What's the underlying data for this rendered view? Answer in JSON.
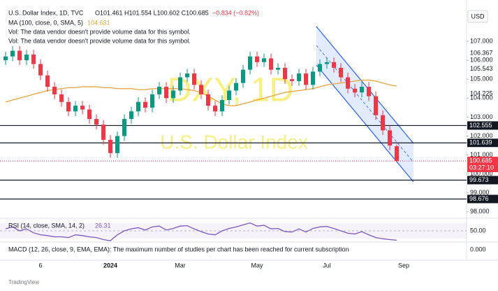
{
  "chart_data": {
    "type": "candlestick",
    "header": {
      "symbol": "U.S. Dollar Index, 1D, TVC",
      "ohlc": "O101.461 H101.554 L100.602 C100.685",
      "change": "−0.834 (−0.82%)",
      "ma": "MA (100, close, 0, SMA, 5)",
      "vol": "Vol: The data vendor doesn't provide volume data for this symbol.",
      "vol2": "Vol: The data vendor doesn't provide volume data for this symbol."
    },
    "currency": "USD",
    "watermark": "DXY, 1D",
    "watermark_sub": "U.S. Dollar Index",
    "countdown": "03:27:10",
    "logo": "TradingView",
    "up_color": "#089981",
    "down_color": "#f23645",
    "categories": [
      null,
      null,
      null,
      null,
      null,
      "6",
      null,
      null,
      null,
      null,
      null,
      null,
      null,
      null,
      null,
      "2024",
      null,
      null,
      null,
      null,
      null,
      null,
      null,
      null,
      null,
      "Mar",
      null,
      null,
      null,
      null,
      null,
      null,
      null,
      null,
      null,
      null,
      "May",
      null,
      null,
      null,
      null,
      null,
      null,
      null,
      null,
      null,
      "Jul",
      null,
      null,
      null,
      null,
      null,
      null,
      null,
      null,
      null,
      null,
      "Sep"
    ],
    "open": [
      106.0,
      106.2,
      106.5,
      106.0,
      106.3,
      105.8,
      105.2,
      104.6,
      104.2,
      103.8,
      103.3,
      103.6,
      103.4,
      102.9,
      102.6,
      101.8,
      101.1,
      102.0,
      102.9,
      103.3,
      103.8,
      103.5,
      104.2,
      104.6,
      104.0,
      104.4,
      105.1,
      105.3,
      104.7,
      104.2,
      103.6,
      103.3,
      103.9,
      104.4,
      104.8,
      105.5,
      106.2,
      105.9,
      106.1,
      105.5,
      105.6,
      105.0,
      104.9,
      105.3,
      104.7,
      105.4,
      105.8,
      105.9,
      105.6,
      105.1,
      104.5,
      104.3,
      104.6,
      104.1,
      103.1,
      102.3,
      101.461,
      null
    ],
    "high": [
      106.45,
      106.75,
      106.75,
      106.55,
      106.55,
      106.05,
      105.45,
      104.85,
      104.45,
      104.05,
      103.85,
      103.85,
      103.65,
      103.15,
      102.85,
      102.05,
      102.25,
      103.15,
      103.55,
      104.05,
      104.05,
      104.45,
      104.85,
      104.85,
      104.65,
      105.35,
      105.55,
      105.55,
      104.95,
      104.45,
      103.85,
      104.15,
      104.65,
      105.05,
      105.75,
      106.45,
      106.45,
      106.35,
      106.35,
      105.85,
      105.85,
      105.25,
      105.55,
      105.55,
      105.65,
      106.05,
      106.15,
      106.15,
      105.85,
      105.35,
      104.75,
      104.85,
      104.85,
      104.35,
      103.35,
      102.55,
      101.554,
      null
    ],
    "low": [
      105.75,
      105.95,
      105.75,
      105.75,
      105.55,
      104.95,
      104.35,
      103.95,
      103.55,
      103.05,
      103.05,
      103.15,
      102.65,
      102.35,
      101.55,
      100.85,
      100.85,
      101.75,
      102.65,
      103.05,
      103.25,
      103.25,
      103.95,
      103.75,
      103.75,
      104.15,
      104.85,
      104.45,
      103.95,
      103.35,
      103.05,
      103.05,
      103.65,
      104.15,
      104.55,
      105.25,
      105.65,
      105.65,
      105.25,
      105.25,
      104.75,
      104.65,
      104.65,
      104.45,
      104.45,
      105.15,
      105.55,
      105.35,
      104.85,
      104.25,
      104.05,
      104.05,
      103.85,
      102.85,
      102.05,
      101.25,
      100.602,
      null
    ],
    "close": [
      106.2,
      106.5,
      106.0,
      106.3,
      105.8,
      105.2,
      104.6,
      104.2,
      103.8,
      103.3,
      103.6,
      103.4,
      102.9,
      102.6,
      101.8,
      101.1,
      102.0,
      102.9,
      103.3,
      103.8,
      103.5,
      104.2,
      104.6,
      104.0,
      104.4,
      105.1,
      105.3,
      104.7,
      104.2,
      103.6,
      103.3,
      103.9,
      104.4,
      104.8,
      105.5,
      106.2,
      105.9,
      106.1,
      105.5,
      105.6,
      105.0,
      104.9,
      105.3,
      104.7,
      105.4,
      105.8,
      105.9,
      105.6,
      105.1,
      104.5,
      104.3,
      104.6,
      104.1,
      103.1,
      102.3,
      101.5,
      100.685,
      null
    ],
    "ma": {
      "color": "#e8a33d",
      "values": [
        103.8,
        103.9,
        104.0,
        104.1,
        104.2,
        104.3,
        104.4,
        104.45,
        104.5,
        104.55,
        104.55,
        104.6,
        104.6,
        104.6,
        104.55,
        104.55,
        104.5,
        104.5,
        104.5,
        104.45,
        104.45,
        104.5,
        104.5,
        104.5,
        104.5,
        104.5,
        104.45,
        104.4,
        104.3,
        104.1,
        103.9,
        103.7,
        103.6,
        103.6,
        103.7,
        103.8,
        103.9,
        104.0,
        104.1,
        104.2,
        104.3,
        104.35,
        104.4,
        104.45,
        104.5,
        104.6,
        104.7,
        104.75,
        104.8,
        104.85,
        104.9,
        104.95,
        104.95,
        104.9,
        104.8,
        104.7,
        104.631,
        null
      ]
    },
    "ylim": [
      97.66,
      109.18
    ],
    "yticks": [
      {
        "value": 107,
        "label": "107.000"
      },
      {
        "value": 106,
        "label": "106.000"
      },
      {
        "value": 105,
        "label": "105.000"
      },
      {
        "value": 104,
        "label": "104.000"
      },
      {
        "value": 103,
        "label": "103.000"
      },
      {
        "value": 102,
        "label": "102.000"
      },
      {
        "value": 101,
        "label": "101.000"
      },
      {
        "value": 100,
        "label": "100.000"
      },
      {
        "value": 99,
        "label": "99.000"
      },
      {
        "value": 98,
        "label": "98.000"
      }
    ],
    "price_labels": [
      106.367,
      105.543,
      104.225
    ],
    "levels": [
      102.555,
      101.639,
      99.673,
      98.676
    ],
    "rsi": {
      "label": "RSI (14, close, SMA, 14, 2)",
      "color": "#7e57c2",
      "ylim": [
        20,
        80
      ],
      "yticks": [
        {
          "value": 50,
          "label": "50.00"
        }
      ],
      "values": [
        55,
        60,
        50,
        55,
        45,
        40,
        38,
        35,
        35,
        33,
        40,
        38,
        35,
        33,
        28,
        25,
        40,
        50,
        55,
        58,
        52,
        60,
        62,
        52,
        56,
        62,
        63,
        55,
        48,
        42,
        40,
        50,
        56,
        60,
        65,
        70,
        62,
        64,
        55,
        56,
        48,
        47,
        55,
        47,
        56,
        60,
        61,
        56,
        50,
        44,
        42,
        48,
        40,
        33,
        30,
        28,
        26.31,
        null
      ]
    },
    "macd": {
      "label": "MACD (12, 26, close, 9, EMA, EMA): The maximum number of studies per chart has been reached for current subscription",
      "yticks": [
        {
          "value": 0,
          "label": "0.000"
        }
      ]
    }
  }
}
